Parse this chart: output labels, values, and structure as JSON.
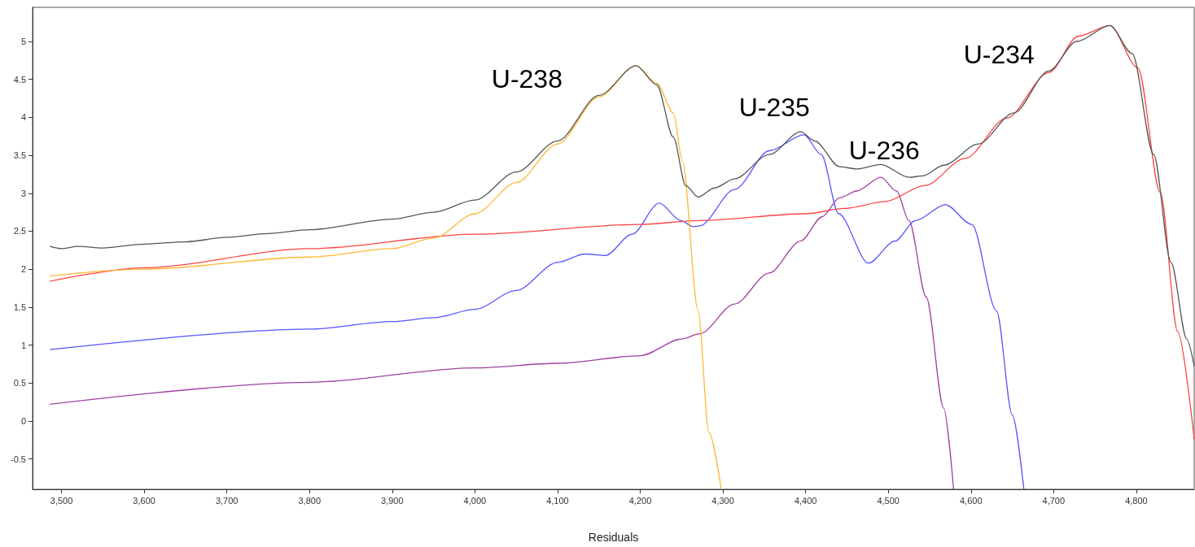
{
  "chart_data": {
    "type": "line",
    "xlabel": "Residuals",
    "marker": "none",
    "grid": false,
    "xlim": [
      3465,
      4870
    ],
    "ylim": [
      -0.9,
      5.45
    ],
    "xticks": [
      {
        "value": 3500,
        "label": "3,500"
      },
      {
        "value": 3600,
        "label": "3,600"
      },
      {
        "value": 3700,
        "label": "3,700"
      },
      {
        "value": 3800,
        "label": "3,800"
      },
      {
        "value": 3900,
        "label": "3,900"
      },
      {
        "value": 4000,
        "label": "4,000"
      },
      {
        "value": 4100,
        "label": "4,100"
      },
      {
        "value": 4200,
        "label": "4,200"
      },
      {
        "value": 4300,
        "label": "4,300"
      },
      {
        "value": 4400,
        "label": "4,400"
      },
      {
        "value": 4500,
        "label": "4,500"
      },
      {
        "value": 4600,
        "label": "4,600"
      },
      {
        "value": 4700,
        "label": "4,700"
      },
      {
        "value": 4800,
        "label": "4,800"
      }
    ],
    "yticks": [
      -0.5,
      0,
      0.5,
      1,
      1.5,
      2,
      2.5,
      3,
      3.5,
      4,
      4.5,
      5
    ],
    "series": [
      {
        "color": "#555555",
        "x": [
          3486,
          3500,
          3520,
          3550,
          3600,
          3650,
          3700,
          3750,
          3800,
          3900,
          3950,
          4000,
          4050,
          4100,
          4150,
          4195,
          4220,
          4240,
          4255,
          4270,
          4290,
          4314,
          4356,
          4394,
          4411,
          4441,
          4462,
          4491,
          4525,
          4542,
          4567,
          4609,
          4652,
          4694,
          4728,
          4768,
          4795,
          4821,
          4842,
          4861,
          4870
        ],
        "values": [
          2.3,
          2.27,
          2.3,
          2.28,
          2.33,
          2.36,
          2.42,
          2.47,
          2.52,
          2.66,
          2.75,
          2.91,
          3.28,
          3.69,
          4.29,
          4.68,
          4.43,
          3.74,
          3.1,
          2.95,
          3.07,
          3.19,
          3.51,
          3.81,
          3.69,
          3.35,
          3.32,
          3.38,
          3.21,
          3.23,
          3.37,
          3.65,
          4.06,
          4.61,
          5.0,
          5.21,
          4.84,
          3.51,
          2.09,
          1.08,
          0.72
        ]
      },
      {
        "color": "#ffb833",
        "x": [
          3486,
          3600,
          3800,
          3900,
          3950,
          4000,
          4050,
          4100,
          4150,
          4195,
          4220,
          4240,
          4251,
          4270,
          4283,
          4298
        ],
        "values": [
          1.91,
          2.0,
          2.16,
          2.27,
          2.41,
          2.73,
          3.14,
          3.65,
          4.27,
          4.68,
          4.45,
          4.06,
          3.42,
          1.45,
          -0.15,
          -0.9
        ]
      },
      {
        "color": "#ff4444",
        "x": [
          3486,
          3600,
          3800,
          4000,
          4200,
          4272,
          4400,
          4447,
          4496,
          4544,
          4593,
          4643,
          4694,
          4730,
          4768,
          4802,
          4829,
          4850,
          4870
        ],
        "values": [
          1.84,
          2.02,
          2.27,
          2.46,
          2.59,
          2.64,
          2.73,
          2.8,
          2.89,
          3.1,
          3.46,
          3.99,
          4.59,
          5.07,
          5.21,
          4.65,
          3.01,
          1.18,
          -0.24
        ]
      },
      {
        "color": "#5555ff",
        "x": [
          3486,
          3800,
          3900,
          3950,
          4000,
          4050,
          4100,
          4133,
          4158,
          4190,
          4223,
          4249,
          4264,
          4272,
          4314,
          4356,
          4398,
          4419,
          4440,
          4476,
          4508,
          4533,
          4569,
          4601,
          4631,
          4650,
          4664
        ],
        "values": [
          0.94,
          1.21,
          1.31,
          1.36,
          1.47,
          1.72,
          2.09,
          2.2,
          2.18,
          2.46,
          2.87,
          2.64,
          2.56,
          2.57,
          3.05,
          3.56,
          3.77,
          3.51,
          2.73,
          2.08,
          2.37,
          2.64,
          2.85,
          2.59,
          1.45,
          0.08,
          -0.9
        ]
      },
      {
        "color": "#a040a0",
        "x": [
          3486,
          3800,
          4000,
          4100,
          4200,
          4250,
          4272,
          4314,
          4356,
          4394,
          4420,
          4441,
          4462,
          4491,
          4510,
          4525,
          4546,
          4567,
          4579
        ],
        "values": [
          0.22,
          0.51,
          0.7,
          0.76,
          0.86,
          1.08,
          1.15,
          1.54,
          1.95,
          2.37,
          2.69,
          2.94,
          3.03,
          3.21,
          3.03,
          2.64,
          1.63,
          0.17,
          -0.9
        ]
      }
    ],
    "annotations": [
      "U-238",
      "U-235",
      "U-236",
      "U-234"
    ]
  }
}
